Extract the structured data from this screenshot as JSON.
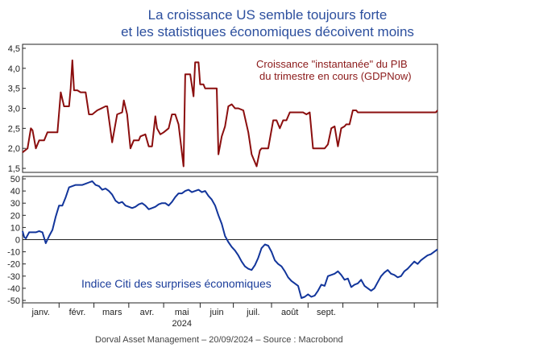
{
  "title_line1": "La croissance US semble toujours forte",
  "title_line2": "et les statistiques économiques décoivent moins",
  "footer": "Dorval Asset Management – 20/09/2024 –   Source : Macrobond",
  "colors": {
    "gdp": "#8b0e0e",
    "citi": "#12359b",
    "gdp_label": "#8b1a1a",
    "citi_label": "#1a3c9a"
  },
  "chart_data": [
    {
      "type": "line",
      "series": [
        {
          "name": "Croissance \"instantanée\" du PIB du trimestre en cours (GDPNow)",
          "x": [
            0,
            3,
            5,
            6,
            8,
            10,
            11,
            13,
            15,
            17,
            21,
            23,
            25,
            27,
            28,
            29,
            30,
            31,
            33,
            35,
            37,
            38,
            40,
            42,
            45,
            50,
            51,
            54,
            57,
            60,
            61,
            63,
            65,
            67,
            68,
            70,
            71,
            74,
            76,
            78,
            80,
            81,
            83,
            85,
            88,
            90,
            92,
            94,
            97,
            98,
            101,
            103,
            104,
            106,
            107,
            109,
            110,
            113,
            116,
            117,
            118,
            120,
            122,
            124,
            126,
            128,
            130,
            133,
            136,
            138,
            141,
            143,
            144,
            146,
            148,
            151,
            153,
            155,
            157,
            159,
            161,
            163,
            165,
            167,
            169,
            171,
            173,
            175,
            177,
            179,
            180,
            182,
            184,
            186,
            188,
            190,
            192,
            194,
            195,
            197,
            199,
            201,
            202,
            204,
            206,
            208,
            210,
            212,
            214,
            216,
            218,
            220,
            222,
            224,
            226,
            228,
            230,
            232,
            234,
            236,
            238,
            240,
            242,
            244,
            246,
            247,
            248,
            249,
            250
          ],
          "values": [
            1.9,
            2.0,
            2.5,
            2.45,
            2.0,
            2.2,
            2.2,
            2.2,
            2.4,
            2.4,
            2.4,
            3.4,
            3.05,
            3.05,
            3.05,
            3.5,
            4.2,
            3.45,
            3.45,
            3.4,
            3.4,
            3.4,
            2.85,
            2.85,
            2.95,
            3.05,
            3.05,
            2.15,
            2.85,
            2.9,
            3.2,
            2.85,
            2.0,
            2.2,
            2.2,
            2.2,
            2.3,
            2.35,
            2.05,
            2.05,
            2.8,
            2.5,
            2.35,
            2.4,
            2.5,
            2.85,
            2.85,
            2.6,
            1.55,
            3.85,
            3.85,
            3.3,
            4.15,
            4.15,
            3.6,
            3.6,
            3.5,
            3.5,
            3.5,
            3.5,
            1.85,
            2.3,
            2.55,
            3.05,
            3.1,
            3.0,
            3.0,
            2.95,
            2.4,
            1.85,
            1.55,
            1.95,
            2.0,
            2.0,
            2.0,
            2.7,
            2.7,
            2.5,
            2.7,
            2.7,
            2.9,
            2.9,
            2.9,
            2.9,
            2.9,
            2.85,
            2.9,
            2.0,
            2.0,
            2.0,
            2.0,
            2.0,
            2.1,
            2.5,
            2.55,
            2.05,
            2.5,
            2.55,
            2.6,
            2.6,
            2.95,
            2.95,
            2.9,
            2.9,
            2.9,
            2.9,
            2.9,
            2.9,
            2.9,
            2.9,
            2.9,
            2.9,
            2.9,
            2.9,
            2.9,
            2.9,
            2.9,
            2.9,
            2.9,
            2.9,
            2.9,
            2.9,
            2.9,
            2.9,
            2.9,
            2.9,
            2.9,
            2.9,
            2.95
          ]
        }
      ],
      "x_tick_labels": [
        "janv.",
        "févr.",
        "mars",
        "avr.",
        "mai",
        "juin",
        "juil.",
        "août",
        "sept."
      ],
      "y_tick_labels": [
        "1,5",
        "2,0",
        "2,5",
        "3,0",
        "3,5",
        "4,0",
        "4,5"
      ],
      "ylim": [
        1.4,
        4.6
      ],
      "annotation": [
        "Croissance \"instantanée\" du PIB",
        "du trimestre en cours (GDPNow)"
      ],
      "grid": false
    },
    {
      "type": "line",
      "series": [
        {
          "name": "Indice Citi des surprises économiques",
          "x": [
            0,
            1,
            2,
            4,
            6,
            8,
            10,
            12,
            14,
            16,
            18,
            20,
            22,
            24,
            26,
            28,
            30,
            32,
            34,
            36,
            38,
            40,
            42,
            44,
            46,
            48,
            50,
            52,
            54,
            56,
            58,
            60,
            62,
            64,
            66,
            68,
            70,
            72,
            74,
            76,
            78,
            80,
            82,
            84,
            86,
            88,
            90,
            92,
            94,
            96,
            98,
            100,
            102,
            104,
            106,
            108,
            110,
            112,
            114,
            116,
            118,
            120,
            122,
            124,
            126,
            128,
            130,
            132,
            134,
            136,
            138,
            140,
            142,
            144,
            146,
            148,
            150,
            152,
            154,
            156,
            158,
            160,
            162,
            164,
            166,
            168,
            170,
            172,
            174,
            176,
            178,
            180,
            182,
            184,
            186,
            188,
            190,
            192,
            194,
            196,
            198,
            200,
            202,
            204,
            206,
            208,
            210,
            212,
            214,
            216,
            218,
            220,
            222,
            224,
            226,
            228,
            230,
            232,
            234,
            236,
            238,
            240,
            242,
            244,
            246,
            248,
            250
          ],
          "values": [
            7,
            2,
            1,
            6,
            6,
            6,
            7,
            6,
            -3,
            3,
            8,
            19,
            28,
            28,
            35,
            43,
            44,
            45,
            45,
            45,
            46,
            47,
            48,
            45,
            44,
            41,
            42,
            40,
            37,
            32,
            30,
            31,
            28,
            27,
            26,
            27,
            29,
            30,
            28,
            25,
            26,
            27,
            29,
            30,
            30,
            28,
            31,
            35,
            38,
            38,
            40,
            41,
            39,
            40,
            41,
            39,
            40,
            36,
            33,
            28,
            20,
            13,
            3,
            -2,
            -6,
            -9,
            -13,
            -18,
            -22,
            -24,
            -25,
            -21,
            -15,
            -7,
            -4,
            -5,
            -10,
            -17,
            -20,
            -22,
            -26,
            -31,
            -34,
            -36,
            -38,
            -48,
            -47,
            -45,
            -47,
            -46,
            -42,
            -37,
            -38,
            -30,
            -29,
            -28,
            -26,
            -29,
            -33,
            -32,
            -39,
            -37,
            -36,
            -33,
            -38,
            -40,
            -42,
            -40,
            -35,
            -30,
            -27,
            -25,
            -28,
            -29,
            -31,
            -30,
            -26,
            -24,
            -21,
            -18,
            -20,
            -17,
            -15,
            -13,
            -12,
            -10,
            -8
          ]
        }
      ],
      "x_tick_labels": [
        "janv.",
        "févr.",
        "mars",
        "avr.",
        "mai",
        "juin",
        "juil.",
        "août",
        "sept."
      ],
      "x_label": "2024",
      "y_tick_labels": [
        "-50",
        "-40",
        "-30",
        "-20",
        "-10",
        "0",
        "10",
        "20",
        "30",
        "40",
        "50"
      ],
      "ylim": [
        -52,
        52
      ],
      "annotation": "Indice Citi des surprises économiques",
      "grid": false
    }
  ]
}
